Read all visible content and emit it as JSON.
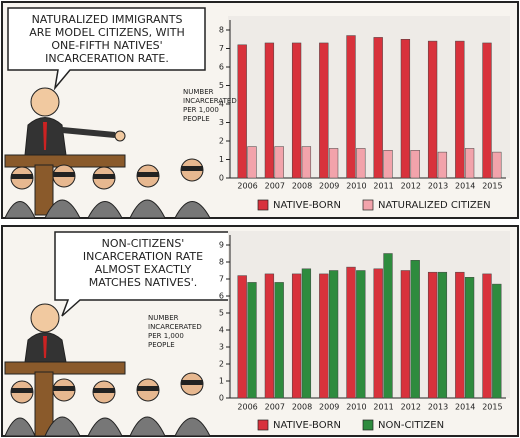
{
  "chart_data": [
    {
      "type": "bar",
      "annotations": [
        "NATURALIZED IMMIGRANTS",
        "ARE MODEL CITIZENS, WITH",
        "ONE-FIFTH NATIVES'",
        "INCARCERATION RATE."
      ],
      "ylabel_lines": [
        "NUMBER",
        "INCARCERATED",
        "PER 1,000",
        "PEOPLE"
      ],
      "categories": [
        "2006",
        "2007",
        "2008",
        "2009",
        "2010",
        "2011",
        "2012",
        "2013",
        "2014",
        "2015"
      ],
      "series": [
        {
          "name": "NATIVE-BORN",
          "color": "#d8323c",
          "values": [
            7.2,
            7.3,
            7.3,
            7.3,
            7.7,
            7.6,
            7.5,
            7.4,
            7.4,
            7.3
          ]
        },
        {
          "name": "NATURALIZED CITIZEN",
          "color": "#f2a3ab",
          "values": [
            1.7,
            1.7,
            1.7,
            1.6,
            1.6,
            1.5,
            1.5,
            1.4,
            1.6,
            1.4
          ]
        }
      ],
      "ylim": [
        0,
        8
      ],
      "yticks": [
        0,
        1,
        2,
        3,
        4,
        5,
        6,
        7,
        8
      ],
      "grid": false
    },
    {
      "type": "bar",
      "annotations": [
        "NON-CITIZENS'",
        "INCARCERATION RATE",
        "ALMOST EXACTLY",
        "MATCHES NATIVES'."
      ],
      "ylabel_lines": [
        "NUMBER",
        "INCARCERATED",
        "PER 1,000",
        "PEOPLE"
      ],
      "categories": [
        "2006",
        "2007",
        "2008",
        "2009",
        "2010",
        "2011",
        "2012",
        "2013",
        "2014",
        "2015"
      ],
      "series": [
        {
          "name": "NATIVE-BORN",
          "color": "#d8323c",
          "values": [
            7.2,
            7.3,
            7.3,
            7.3,
            7.7,
            7.6,
            7.5,
            7.4,
            7.4,
            7.3
          ]
        },
        {
          "name": "NON-CITIZEN",
          "color": "#2e8b3e",
          "values": [
            6.8,
            6.8,
            7.6,
            7.5,
            7.5,
            8.5,
            8.1,
            7.4,
            7.1,
            6.7
          ]
        }
      ],
      "ylim": [
        0,
        9
      ],
      "yticks": [
        0,
        1,
        2,
        3,
        4,
        5,
        6,
        7,
        8,
        9
      ],
      "grid": false
    }
  ]
}
